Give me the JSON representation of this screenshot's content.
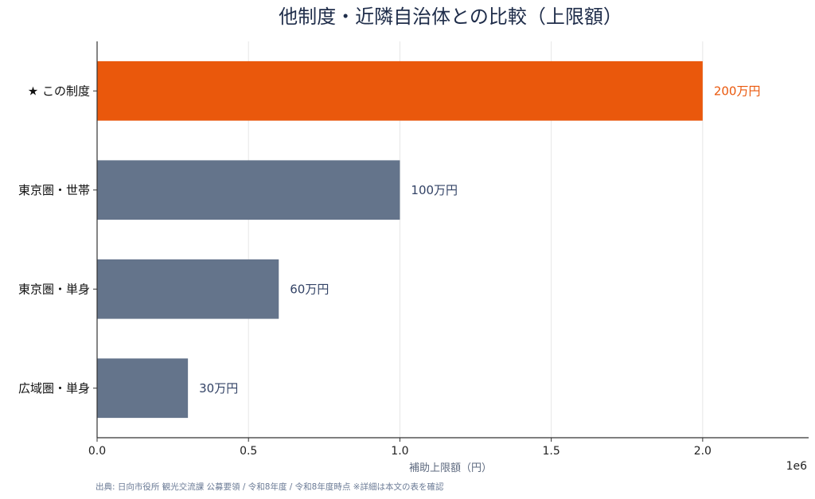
{
  "chart_data": {
    "type": "bar",
    "orientation": "horizontal",
    "title": "他制度・近隣自治体との比較（上限額）",
    "xlabel": "補助上限額（円）",
    "x_offset_label": "1e6",
    "xlim": [
      0,
      2350000
    ],
    "x_ticks": [
      0,
      500000,
      1000000,
      1500000,
      2000000
    ],
    "x_tick_labels": [
      "0.0",
      "0.5",
      "1.0",
      "1.5",
      "2.0"
    ],
    "grid": "vertical",
    "categories": [
      "★ この制度",
      "東京圏・世帯",
      "東京圏・単身",
      "広域圏・単身"
    ],
    "values": [
      2000000,
      1000000,
      600000,
      300000
    ],
    "data_labels": [
      "200万円",
      "100万円",
      "60万円",
      "30万円"
    ],
    "highlight_index": 0,
    "colors": {
      "highlight": "#ea580c",
      "bar": "#64748b",
      "highlight_label": "#ea580c",
      "label": "#334366",
      "grid": "#e6e6e6",
      "axis": "#333333"
    }
  },
  "source_note": "出典: 日向市役所 観光交流課 公募要領 / 令和8年度 / 令和8年度時点 ※詳細は本文の表を確認"
}
